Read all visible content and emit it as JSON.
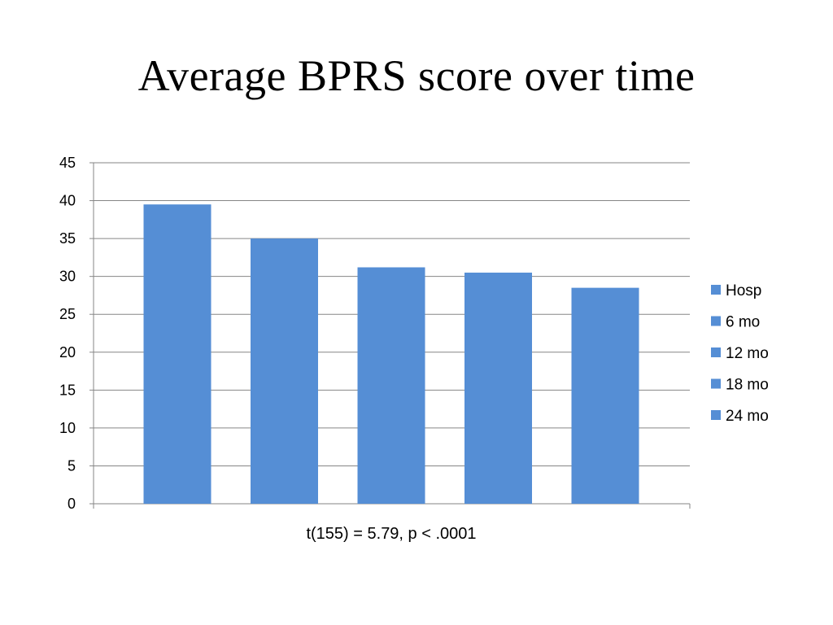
{
  "slide": {
    "title": "Average BPRS score over time",
    "footnote": "t(155) = 5.79, p < .0001"
  },
  "chart_data": {
    "type": "bar",
    "title": "",
    "xlabel": "",
    "ylabel": "",
    "categories": [
      "Hosp",
      "6 mo",
      "12 mo",
      "18 mo",
      "24 mo"
    ],
    "values": [
      39.5,
      35.0,
      31.2,
      30.5,
      28.5
    ],
    "ylim": [
      0,
      45
    ],
    "yticks": [
      0,
      5,
      10,
      15,
      20,
      25,
      30,
      35,
      40,
      45
    ],
    "grid": true,
    "legend": "right",
    "bar_color": "#558ed5",
    "grid_color": "#868686"
  }
}
